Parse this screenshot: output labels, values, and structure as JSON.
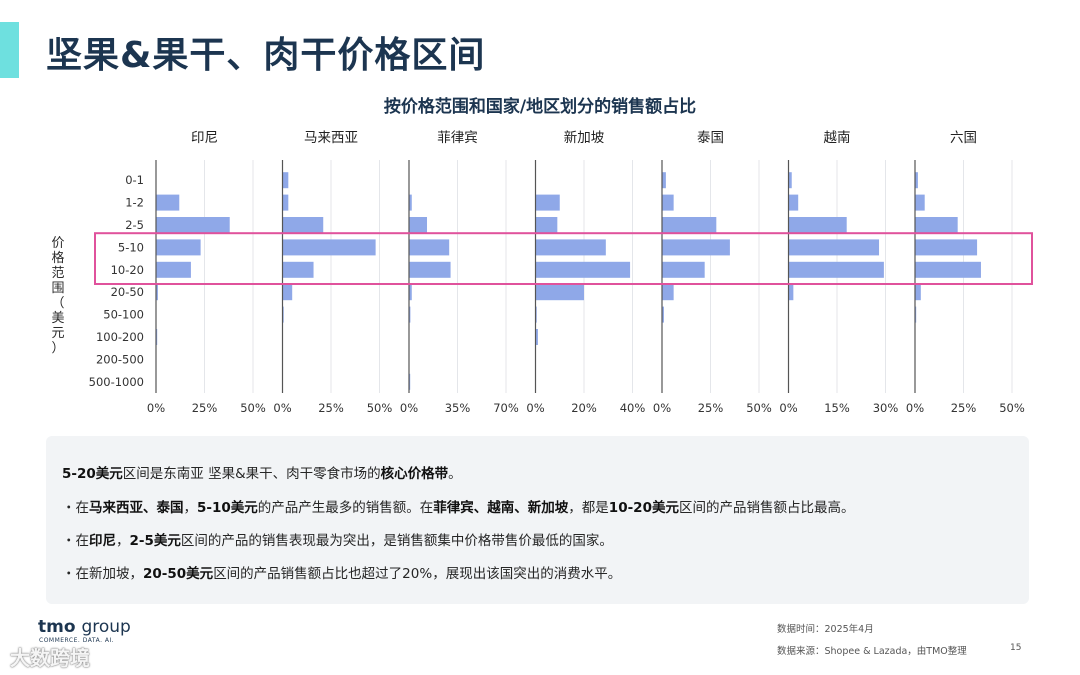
{
  "page": {
    "title": "坚果&果干、肉干价格区间",
    "footer_date": "数据时间：2025年4月",
    "footer_source": "数据来源：Shopee & Lazada，由TMO整理",
    "page_number": "15",
    "logo": "tmo",
    "logo_group": "group",
    "logo_tagline": "COMMERCE. DATA. AI.",
    "watermark": "大数跨境"
  },
  "summary": {
    "headline_pre": "5-20美元",
    "headline_mid": "区间是东南亚 坚果&果干、肉干零食市场的",
    "headline_bold": "核心价格带",
    "headline_end": "。",
    "bullets": [
      {
        "p1": "・在",
        "b1": "马来西亚、泰国",
        "p2": "，",
        "b2": "5-10美元",
        "p3": "的产品产生最多的销售额。在",
        "b3": "菲律宾、越南、新加坡",
        "p4": "，都是",
        "b4": "10-20美元",
        "p5": "区间的产品销售额占比最高。"
      },
      {
        "p1": "・在",
        "b1": "印尼",
        "p2": "，",
        "b2": "2-5美元",
        "p3": "区间的产品的销售表现最为突出，是销售额集中价格带售价最低的国家。",
        "b3": "",
        "p4": "",
        "b4": "",
        "p5": ""
      },
      {
        "p1": "・在新加坡，",
        "b1": "20-50美元",
        "p2": "区间的产品销售额占比也超过了20%，展现出该国突出的消费水平。",
        "b2": "",
        "p3": "",
        "b3": "",
        "p4": "",
        "b4": "",
        "p5": ""
      }
    ]
  },
  "chart_data": {
    "type": "bar",
    "orientation": "horizontal",
    "title": "按价格范围和国家/地区划分的销售额占比",
    "ylabel": "价格范围（美元）",
    "categories": [
      "0-1",
      "1-2",
      "2-5",
      "5-10",
      "10-20",
      "20-50",
      "50-100",
      "100-200",
      "200-500",
      "500-1000"
    ],
    "highlight_categories": [
      "5-10",
      "10-20"
    ],
    "highlight_color": "#e0529c",
    "bar_color": "#8fa8e8",
    "panels": [
      {
        "name": "印尼",
        "xlim": [
          0,
          50
        ],
        "ticks": [
          "0%",
          "25%",
          "50%"
        ],
        "values": [
          0,
          12,
          38,
          23,
          18,
          1,
          0,
          0.5,
          0,
          0
        ]
      },
      {
        "name": "马来西亚",
        "xlim": [
          0,
          50
        ],
        "ticks": [
          "0%",
          "25%",
          "50%"
        ],
        "values": [
          3,
          3,
          21,
          48,
          16,
          5,
          0.5,
          0,
          0,
          0
        ]
      },
      {
        "name": "菲律宾",
        "xlim": [
          0,
          70
        ],
        "ticks": [
          "0%",
          "35%",
          "70%"
        ],
        "values": [
          0,
          2,
          13,
          29,
          30,
          2,
          1,
          0,
          0,
          0.5
        ]
      },
      {
        "name": "新加坡",
        "xlim": [
          0,
          40
        ],
        "ticks": [
          "0%",
          "20%",
          "40%"
        ],
        "values": [
          0,
          10,
          9,
          29,
          39,
          20,
          0.5,
          1,
          0,
          0
        ]
      },
      {
        "name": "泰国",
        "xlim": [
          0,
          50
        ],
        "ticks": [
          "0%",
          "25%",
          "50%"
        ],
        "values": [
          2,
          6,
          28,
          35,
          22,
          6,
          1,
          0,
          0,
          0
        ]
      },
      {
        "name": "越南",
        "xlim": [
          0,
          30
        ],
        "ticks": [
          "0%",
          "15%",
          "30%"
        ],
        "values": [
          1,
          3,
          18,
          28,
          29.5,
          1.5,
          0,
          0,
          0,
          0
        ]
      },
      {
        "name": "六国",
        "xlim": [
          0,
          50
        ],
        "ticks": [
          "0%",
          "25%",
          "50%"
        ],
        "values": [
          1.5,
          5,
          22,
          32,
          34,
          3,
          0.5,
          0,
          0,
          0
        ]
      }
    ]
  }
}
